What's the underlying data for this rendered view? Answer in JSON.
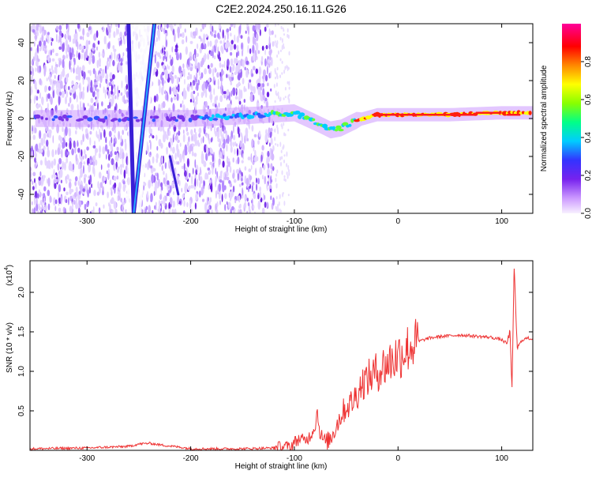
{
  "title": "C2E2.2024.250.16.11.G26",
  "chart_data": [
    {
      "type": "heatmap",
      "xlabel": "Height of straight line (km)",
      "ylabel": "Frequency (Hz)",
      "xlim": [
        -355,
        130
      ],
      "ylim": [
        -50,
        50
      ],
      "xticks": [
        -300,
        -200,
        -100,
        0,
        100
      ],
      "yticks": [
        -40,
        -20,
        0,
        20,
        40
      ],
      "colorbar": {
        "label": "Normalized spectral amplitude",
        "range": [
          0.0,
          1.0
        ],
        "ticks": [
          0.0,
          0.2,
          0.4,
          0.6,
          0.8
        ],
        "tick_labels": [
          "0.0",
          "0.2",
          "0.4",
          "0.6",
          "0.8"
        ],
        "colors": [
          "#f8f0ff",
          "#cc99ff",
          "#7722ee",
          "#3333ff",
          "#00ccff",
          "#00ff88",
          "#88ff00",
          "#ffff00",
          "#ff8800",
          "#ff0000",
          "#ff0099"
        ]
      },
      "features": {
        "ridge_center_freq": [
          {
            "x": -350,
            "y": 0
          },
          {
            "x": -200,
            "y": 0
          },
          {
            "x": -130,
            "y": 2
          },
          {
            "x": -100,
            "y": 3
          },
          {
            "x": -80,
            "y": -2
          },
          {
            "x": -65,
            "y": -6
          },
          {
            "x": -55,
            "y": -5
          },
          {
            "x": -40,
            "y": -1
          },
          {
            "x": -20,
            "y": 2
          },
          {
            "x": 0,
            "y": 2
          },
          {
            "x": 50,
            "y": 2
          },
          {
            "x": 100,
            "y": 3
          },
          {
            "x": 130,
            "y": 3
          }
        ],
        "diagonal_lines": [
          {
            "from": {
              "x": -260,
              "y": 50
            },
            "to": {
              "x": -255,
              "y": -50
            }
          },
          {
            "from": {
              "x": -235,
              "y": 50
            },
            "to": {
              "x": -255,
              "y": -50
            }
          },
          {
            "from": {
              "x": -220,
              "y": -20
            },
            "to": {
              "x": -212,
              "y": -40
            }
          }
        ],
        "noise_region_end_x": -120
      }
    },
    {
      "type": "line",
      "xlabel": "Height of straight line (km)",
      "ylabel": "SNR (10 * v/v)",
      "y_multiplier": "(x10",
      "y_multiplier_exp": "4",
      "y_multiplier_close": ")",
      "xlim": [
        -355,
        130
      ],
      "ylim": [
        0,
        2.4
      ],
      "xticks": [
        -300,
        -200,
        -100,
        0,
        100
      ],
      "yticks": [
        0.5,
        1.0,
        1.5,
        2.0
      ],
      "ytick_labels": [
        "0.5",
        "1.0",
        "1.5",
        "2.0"
      ],
      "color": "#ee3333",
      "series": [
        {
          "x": [
            -355,
            -300,
            -260,
            -250,
            -240,
            -230,
            -210,
            -200,
            -150,
            -120,
            -105,
            -100,
            -95,
            -90,
            -85,
            -80,
            -78,
            -75,
            -70,
            -65,
            -60,
            -55,
            -50,
            -45,
            -40,
            -35,
            -30,
            -25,
            -20,
            -15,
            -10,
            -5,
            0,
            10,
            20,
            30,
            40,
            50,
            60,
            70,
            80,
            90,
            100,
            105,
            108,
            110,
            112,
            115,
            120,
            125,
            130
          ],
          "y": [
            0.02,
            0.03,
            0.05,
            0.08,
            0.09,
            0.07,
            0.04,
            0.02,
            0.02,
            0.03,
            0.05,
            0.1,
            0.15,
            0.12,
            0.18,
            0.3,
            0.5,
            0.2,
            0.1,
            0.15,
            0.3,
            0.45,
            0.55,
            0.6,
            0.7,
            0.85,
            0.9,
            0.95,
            1.0,
            1.05,
            1.1,
            1.15,
            1.2,
            1.3,
            1.38,
            1.42,
            1.44,
            1.45,
            1.46,
            1.45,
            1.44,
            1.43,
            1.4,
            1.35,
            1.5,
            0.8,
            2.3,
            1.3,
            1.4,
            1.42,
            1.41
          ]
        }
      ]
    }
  ]
}
